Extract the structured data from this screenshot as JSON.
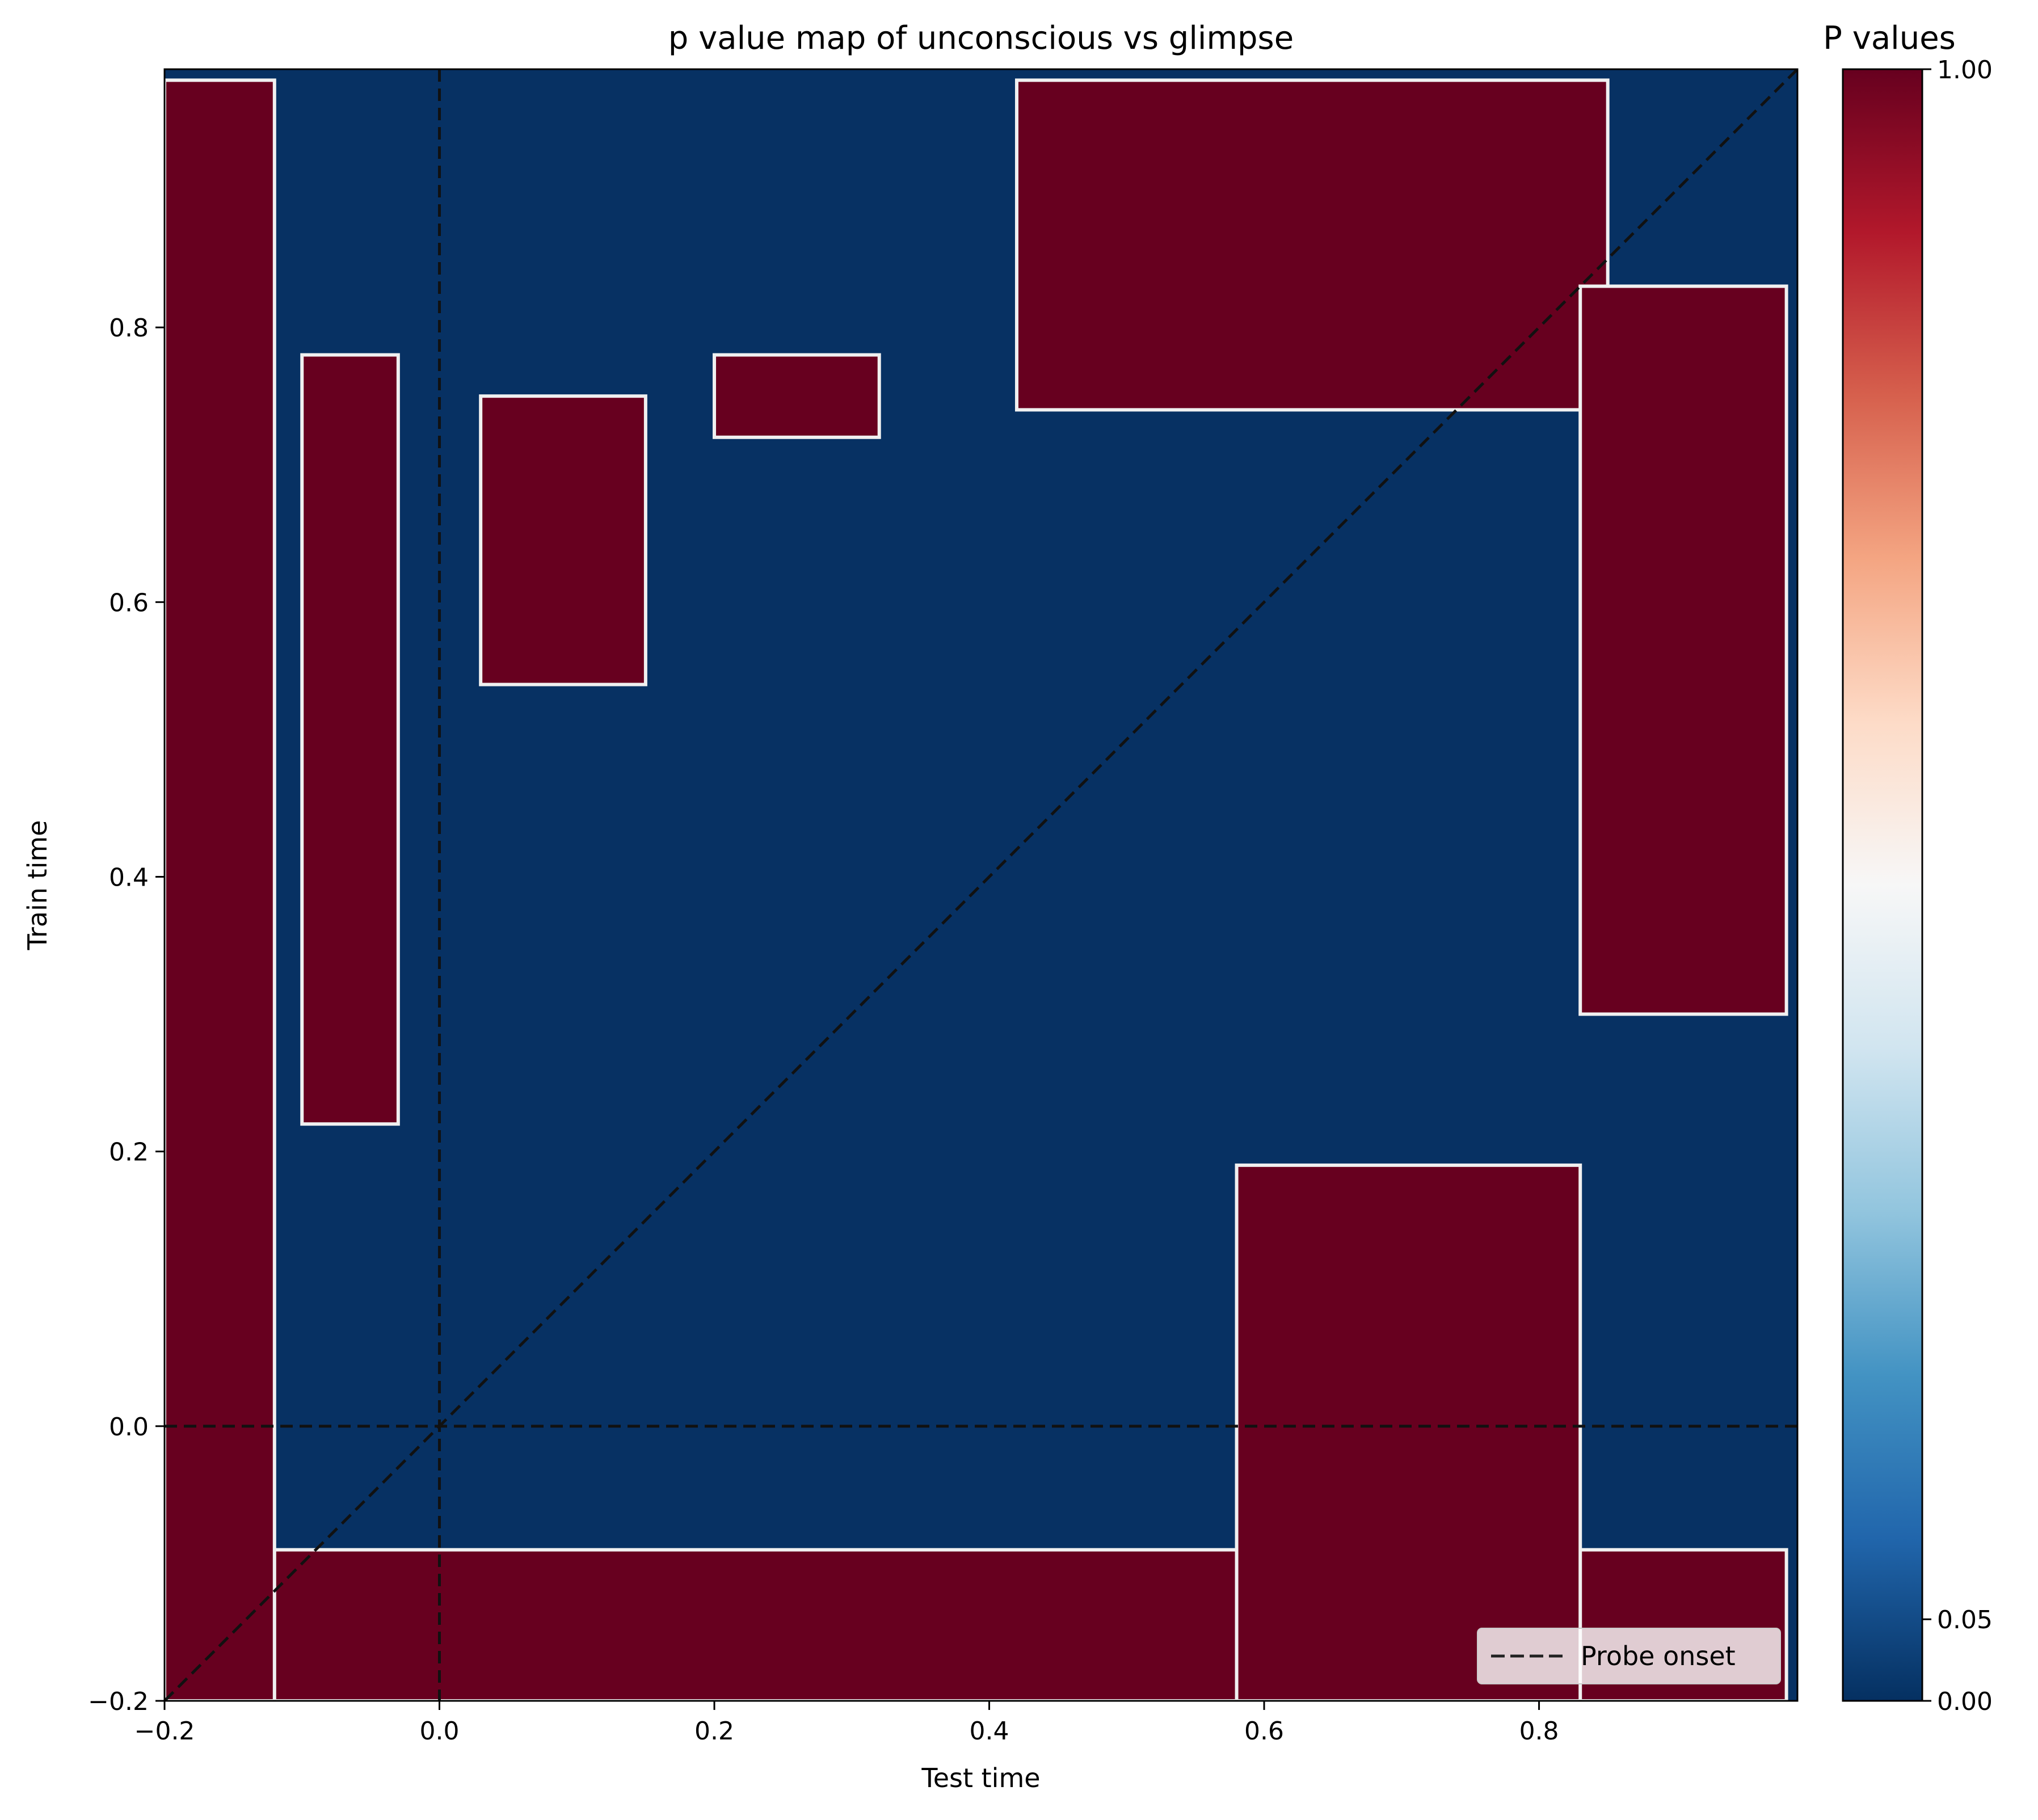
{
  "chart_data": {
    "type": "heatmap",
    "title": "p value map of unconscious vs glimpse",
    "xlabel": "Test time",
    "ylabel": "Train time",
    "xlim": [
      -0.2,
      0.988
    ],
    "ylim": [
      -0.2,
      0.988
    ],
    "x_ticks": [
      -0.2,
      0.0,
      0.2,
      0.4,
      0.6,
      0.8
    ],
    "x_tick_labels": [
      "−0.2",
      "0.0",
      "0.2",
      "0.4",
      "0.6",
      "0.8"
    ],
    "y_ticks": [
      -0.2,
      0.0,
      0.2,
      0.4,
      0.6,
      0.8
    ],
    "y_tick_labels": [
      "−0.2",
      "0.0",
      "0.2",
      "0.4",
      "0.6",
      "0.8"
    ],
    "colormap": "RdBu_r",
    "colorbar": {
      "label": "P values",
      "ticks": [
        0.0,
        0.05,
        1.0
      ],
      "tick_labels": [
        "0.00",
        "0.05",
        "1.00"
      ],
      "low_color": "#073163",
      "high_color": "#67001f"
    },
    "value_levels": {
      "significant": 0.0,
      "not_significant": 1.0
    },
    "regions_not_significant": [
      {
        "name": "bottom band",
        "x": [
          -0.2,
          0.98
        ],
        "y": [
          -0.2,
          -0.09
        ]
      },
      {
        "name": "left column",
        "x": [
          -0.2,
          -0.12
        ],
        "y": [
          -0.2,
          0.98
        ]
      },
      {
        "name": "left strip",
        "x": [
          -0.1,
          -0.03
        ],
        "y": [
          0.22,
          0.78
        ]
      },
      {
        "name": "top-left block",
        "x": [
          0.03,
          0.15
        ],
        "y": [
          0.54,
          0.75
        ]
      },
      {
        "name": "top band",
        "x": [
          0.42,
          0.85
        ],
        "y": [
          0.74,
          0.98
        ]
      },
      {
        "name": "right block",
        "x": [
          0.83,
          0.98
        ],
        "y": [
          0.3,
          0.83
        ]
      },
      {
        "name": "lower-right block",
        "x": [
          0.58,
          0.83
        ],
        "y": [
          -0.2,
          0.19
        ]
      },
      {
        "name": "upper-middle block",
        "x": [
          0.2,
          0.32
        ],
        "y": [
          0.72,
          0.78
        ]
      }
    ],
    "reference_lines": [
      {
        "type": "vertical",
        "x": 0.0,
        "style": "dashed"
      },
      {
        "type": "horizontal",
        "y": 0.0,
        "style": "dashed"
      },
      {
        "type": "diagonal",
        "from": [
          -0.2,
          -0.2
        ],
        "to": [
          0.988,
          0.988
        ],
        "style": "dashed"
      }
    ],
    "legend": {
      "entries": [
        "Probe onset"
      ],
      "position": "lower right"
    }
  }
}
